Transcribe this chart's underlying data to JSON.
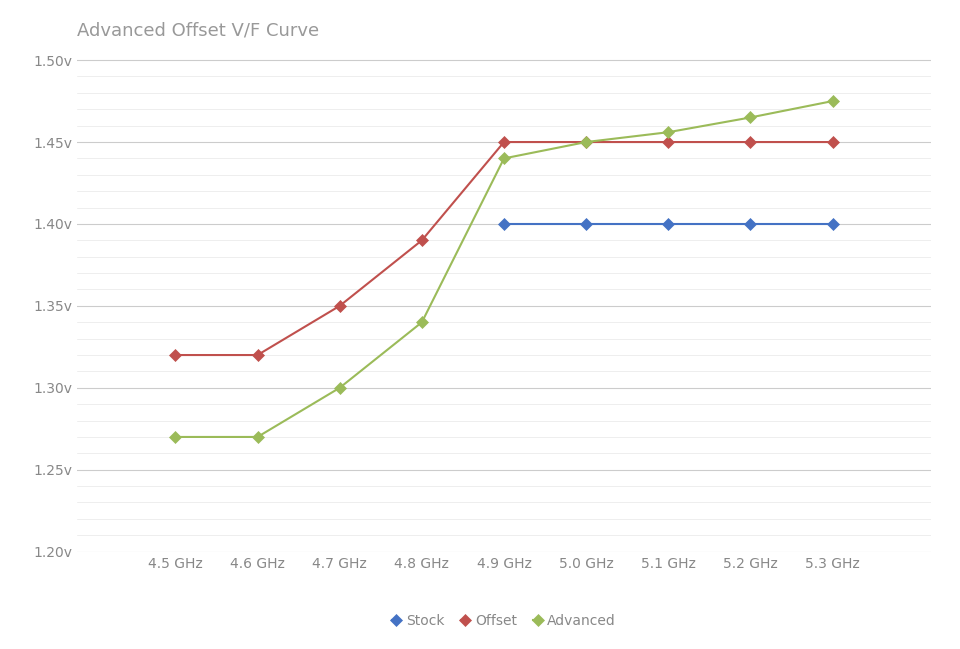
{
  "title": "Advanced Offset V/F Curve",
  "title_color": "#999999",
  "title_fontsize": 13,
  "background_color": "#ffffff",
  "plot_bg_color": "#ffffff",
  "x_labels": [
    "4.5 GHz",
    "4.6 GHz",
    "4.7 GHz",
    "4.8 GHz",
    "4.9 GHz",
    "5.0 GHz",
    "5.1 GHz",
    "5.2 GHz",
    "5.3 GHz"
  ],
  "x_values": [
    4.5,
    4.6,
    4.7,
    4.8,
    4.9,
    5.0,
    5.1,
    5.2,
    5.3
  ],
  "stock": {
    "label": "Stock",
    "color": "#4472c4",
    "values": [
      null,
      null,
      null,
      null,
      1.4,
      1.4,
      1.4,
      1.4,
      1.4
    ]
  },
  "offset": {
    "label": "Offset",
    "color": "#c0504d",
    "values": [
      1.32,
      1.32,
      1.35,
      1.39,
      1.45,
      1.45,
      1.45,
      1.45,
      1.45
    ]
  },
  "advanced": {
    "label": "Advanced",
    "color": "#9bbb59",
    "values": [
      1.27,
      1.27,
      1.3,
      1.34,
      1.44,
      1.45,
      1.456,
      1.465,
      1.475
    ]
  },
  "ylim": [
    1.2,
    1.505
  ],
  "yticks": [
    1.2,
    1.25,
    1.3,
    1.35,
    1.4,
    1.45,
    1.5
  ],
  "ytick_labels": [
    "1.20v",
    "1.25v",
    "1.30v",
    "1.35v",
    "1.40v",
    "1.45v",
    "1.50v"
  ],
  "major_grid_color": "#cccccc",
  "minor_grid_color": "#e8e8e8",
  "marker": "D",
  "markersize": 6,
  "linewidth": 1.5,
  "legend_fontsize": 10,
  "tick_fontsize": 10,
  "tick_color": "#888888"
}
